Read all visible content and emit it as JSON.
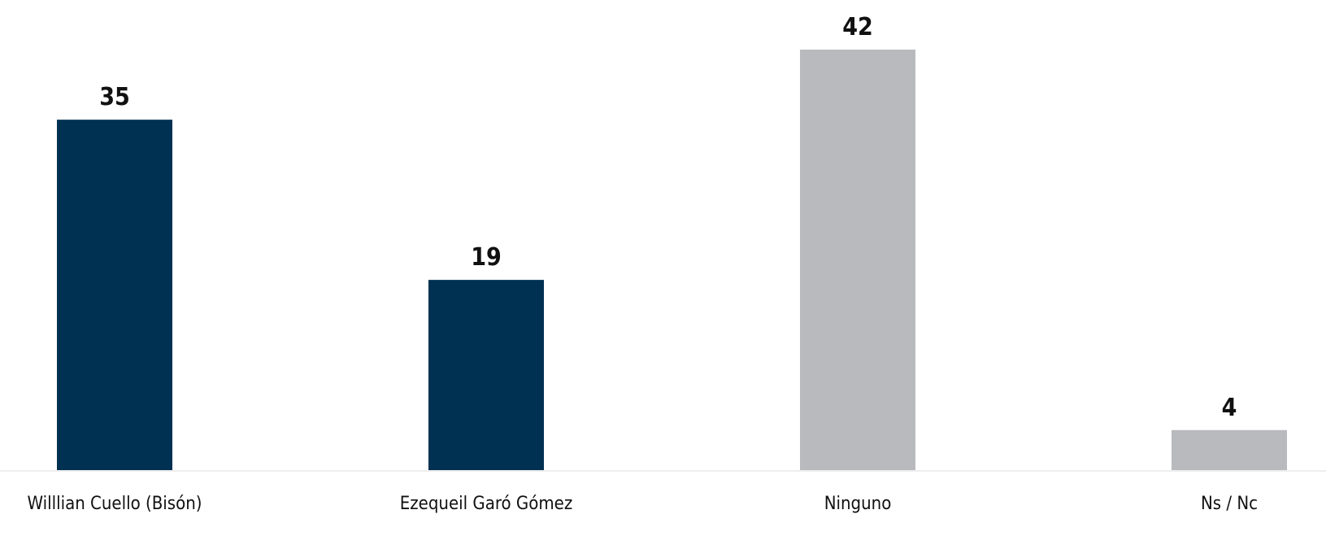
{
  "chart_data": {
    "type": "bar",
    "categories": [
      "Willlian Cuello (Bisón)",
      "Ezequeil Garó Gómez",
      "Ninguno",
      "Ns / Nc"
    ],
    "values": [
      35,
      19,
      42,
      4
    ],
    "colors": [
      "#003152",
      "#003152",
      "#b9babe",
      "#b9babe"
    ]
  }
}
